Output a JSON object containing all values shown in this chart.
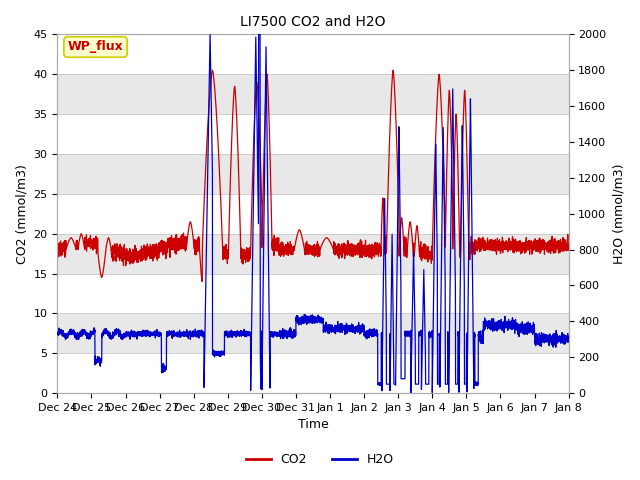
{
  "title": "LI7500 CO2 and H2O",
  "xlabel": "Time",
  "ylabel_left": "CO2 (mmol/m3)",
  "ylabel_right": "H2O (mmol/m3)",
  "annotation": "WP_flux",
  "ylim_left": [
    0,
    45
  ],
  "ylim_right": [
    0,
    2000
  ],
  "yticks_left": [
    0,
    5,
    10,
    15,
    20,
    25,
    30,
    35,
    40,
    45
  ],
  "yticks_right": [
    0,
    200,
    400,
    600,
    800,
    1000,
    1200,
    1400,
    1600,
    1800,
    2000
  ],
  "co2_color": "#cc0000",
  "h2o_color": "#0000cc",
  "background_color": "#ffffff",
  "grid_color": "#c8c8c8",
  "band_color": "#e8e8e8",
  "annotation_bg": "#ffffcc",
  "annotation_border": "#cccc00",
  "legend_co2_color": "#cc0000",
  "legend_h2o_color": "#0000cc",
  "xtick_labels": [
    "Dec 24",
    "Dec 25",
    "Dec 26",
    "Dec 27",
    "Dec 28",
    "Dec 29",
    "Dec 30",
    "Dec 31",
    "Jan 1",
    "Jan 2",
    "Jan 3",
    "Jan 4",
    "Jan 5",
    "Jan 6",
    "Jan 7",
    "Jan 8"
  ],
  "xtick_positions": [
    0,
    1,
    2,
    3,
    4,
    5,
    6,
    7,
    8,
    9,
    10,
    11,
    12,
    13,
    14,
    15
  ],
  "n_points": 5000,
  "figsize": [
    6.4,
    4.8
  ],
  "dpi": 100
}
